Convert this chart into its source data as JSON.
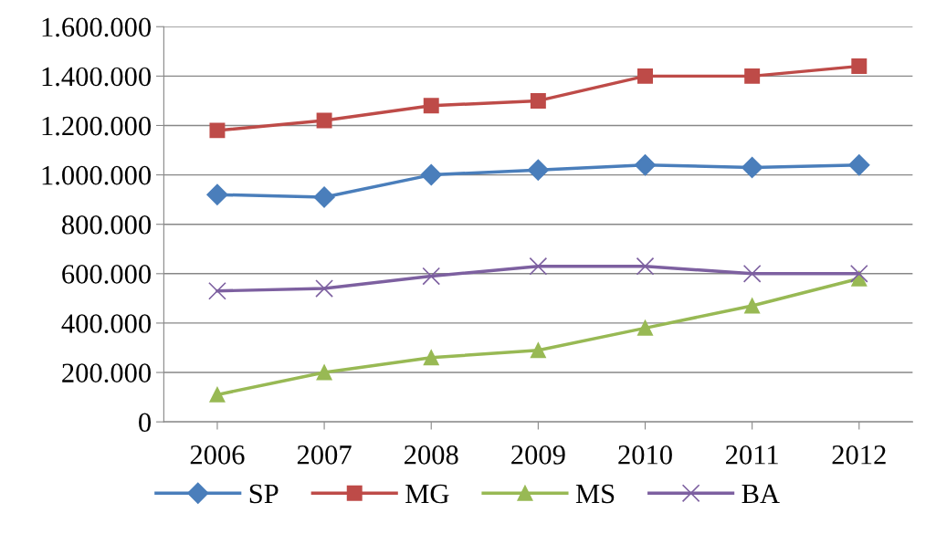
{
  "chart_data": {
    "type": "line",
    "categories": [
      "2006",
      "2007",
      "2008",
      "2009",
      "2010",
      "2011",
      "2012"
    ],
    "ylim": [
      0,
      1600000
    ],
    "yticks": [
      {
        "value": 0,
        "label": "0"
      },
      {
        "value": 200000,
        "label": "200.000"
      },
      {
        "value": 400000,
        "label": "400.000"
      },
      {
        "value": 600000,
        "label": "600.000"
      },
      {
        "value": 800000,
        "label": "800.000"
      },
      {
        "value": 1000000,
        "label": "1.000.000"
      },
      {
        "value": 1200000,
        "label": "1.200.000"
      },
      {
        "value": 1400000,
        "label": "1.400.000"
      },
      {
        "value": 1600000,
        "label": "1.600.000"
      }
    ],
    "grid": "y",
    "legend": "bottom",
    "line_style": "solid",
    "series": [
      {
        "name": "SP",
        "color": "#4a7ebb",
        "marker": "diamond",
        "values": [
          920000,
          910000,
          1000000,
          1020000,
          1040000,
          1030000,
          1040000
        ]
      },
      {
        "name": "MG",
        "color": "#be4b48",
        "marker": "square",
        "values": [
          1180000,
          1220000,
          1280000,
          1300000,
          1400000,
          1400000,
          1440000
        ]
      },
      {
        "name": "MS",
        "color": "#98b954",
        "marker": "triangle",
        "values": [
          110000,
          200000,
          260000,
          290000,
          380000,
          470000,
          580000
        ]
      },
      {
        "name": "BA",
        "color": "#7d60a0",
        "marker": "cross",
        "values": [
          530000,
          540000,
          590000,
          630000,
          630000,
          600000,
          600000
        ]
      }
    ]
  }
}
